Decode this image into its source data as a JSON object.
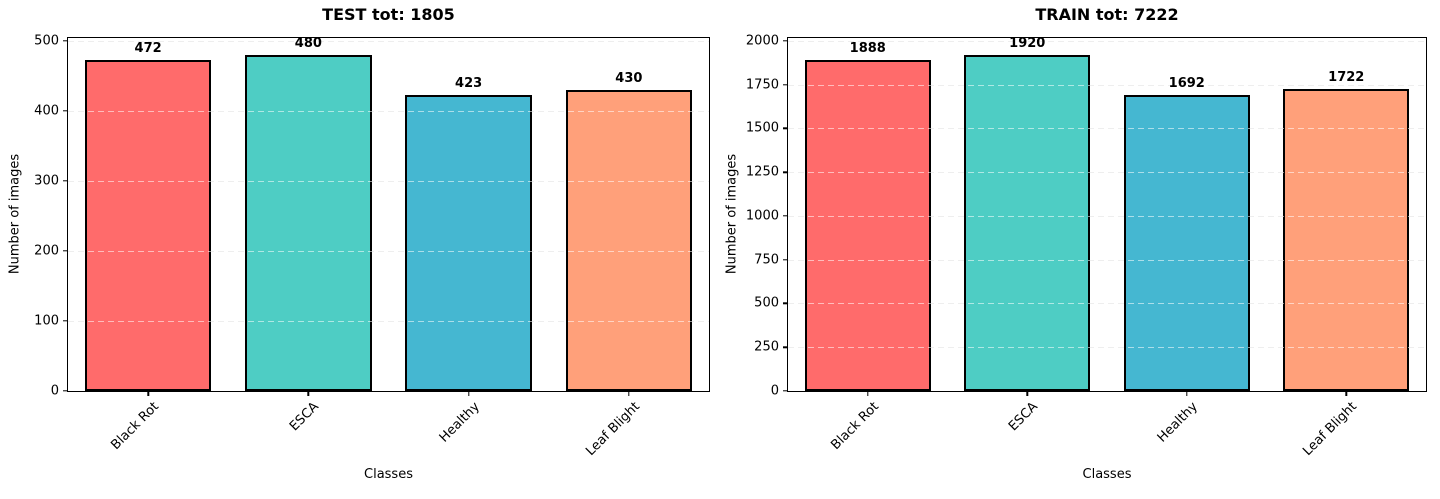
{
  "figure": {
    "background": "#ffffff",
    "text_color": "#000000",
    "grid_color_outside_bars": "#d9d9d9",
    "grid_color_over_bars": "rgba(255,255,255,0.55)",
    "bar_edge_color": "#000000"
  },
  "chart_data": [
    {
      "type": "bar",
      "title": "TEST tot: 1805",
      "total": 1805,
      "categories": [
        "Black Rot",
        "ESCA",
        "Healthy",
        "Leaf Blight"
      ],
      "values": [
        472,
        480,
        423,
        430
      ],
      "bar_colors": [
        "#FF6B6B",
        "#4ECDC4",
        "#45B7D1",
        "#FFA07A"
      ],
      "xlabel": "Classes",
      "ylabel": "Number of images",
      "yticks": [
        0,
        100,
        200,
        300,
        400,
        500
      ],
      "ylim": [
        0,
        504
      ],
      "grid": "dashed-horizontal",
      "bar_width_fraction": 0.79
    },
    {
      "type": "bar",
      "title": "TRAIN tot: 7222",
      "total": 7222,
      "categories": [
        "Black Rot",
        "ESCA",
        "Healthy",
        "Leaf Blight"
      ],
      "values": [
        1888,
        1920,
        1692,
        1722
      ],
      "bar_colors": [
        "#FF6B6B",
        "#4ECDC4",
        "#45B7D1",
        "#FFA07A"
      ],
      "xlabel": "Classes",
      "ylabel": "Number of images",
      "yticks": [
        0,
        250,
        500,
        750,
        1000,
        1250,
        1500,
        1750,
        2000
      ],
      "ylim": [
        0,
        2016
      ],
      "grid": "dashed-horizontal",
      "bar_width_fraction": 0.79
    }
  ]
}
